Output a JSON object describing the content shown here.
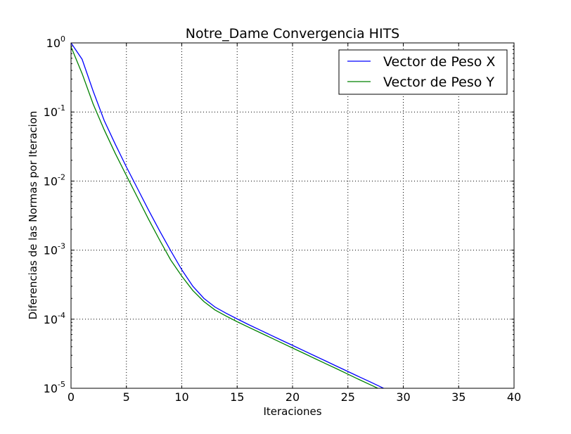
{
  "chart_data": {
    "type": "line",
    "title": "Notre_Dame Convergencia HITS",
    "xlabel": "Iteraciones",
    "ylabel": "Diferencias de las Normas por Iteracion",
    "xlim": [
      0,
      40
    ],
    "ylim": [
      1e-05,
      1
    ],
    "yscale": "log",
    "grid": true,
    "legend_position": "top-right",
    "x_ticks": [
      {
        "value": 0,
        "label": "0"
      },
      {
        "value": 5,
        "label": "5"
      },
      {
        "value": 10,
        "label": "10"
      },
      {
        "value": 15,
        "label": "15"
      },
      {
        "value": 20,
        "label": "20"
      },
      {
        "value": 25,
        "label": "25"
      },
      {
        "value": 30,
        "label": "30"
      },
      {
        "value": 35,
        "label": "35"
      },
      {
        "value": 40,
        "label": "40"
      }
    ],
    "y_ticks": [
      {
        "value": 1,
        "base": "10",
        "exp": "0"
      },
      {
        "value": 0.1,
        "base": "10",
        "exp": "-1"
      },
      {
        "value": 0.01,
        "base": "10",
        "exp": "-2"
      },
      {
        "value": 0.001,
        "base": "10",
        "exp": "-3"
      },
      {
        "value": 0.0001,
        "base": "10",
        "exp": "-4"
      },
      {
        "value": 1e-05,
        "base": "10",
        "exp": "-5"
      }
    ],
    "series": [
      {
        "name": "Vector de Peso X",
        "color": "#0000ff",
        "x": [
          0,
          1,
          2,
          3,
          4,
          5,
          6,
          7,
          8,
          9,
          10,
          11,
          12,
          13,
          14,
          15,
          16,
          17,
          18,
          19,
          20,
          21,
          22,
          23,
          24,
          25,
          26,
          27,
          28,
          29
        ],
        "y": [
          1.0,
          0.58,
          0.2,
          0.075,
          0.034,
          0.016,
          0.0078,
          0.0038,
          0.0019,
          0.00098,
          0.00052,
          0.0003,
          0.0002,
          0.00015,
          0.000122,
          0.000101,
          8.4e-05,
          7.05e-05,
          5.92e-05,
          4.97e-05,
          4.18e-05,
          3.51e-05,
          2.95e-05,
          2.48e-05,
          2.08e-05,
          1.75e-05,
          1.47e-05,
          1.24e-05,
          1.04e-05,
          8.7e-06
        ]
      },
      {
        "name": "Vector de Peso Y",
        "color": "#008000",
        "x": [
          0,
          1,
          2,
          3,
          4,
          5,
          6,
          7,
          8,
          9,
          10,
          11,
          12,
          13,
          14,
          15,
          16,
          17,
          18,
          19,
          20,
          21,
          22,
          23,
          24,
          25,
          26,
          27,
          28
        ],
        "y": [
          0.88,
          0.36,
          0.13,
          0.055,
          0.025,
          0.012,
          0.0058,
          0.0028,
          0.0014,
          0.00072,
          0.00042,
          0.00026,
          0.00018,
          0.000136,
          0.000111,
          9.2e-05,
          7.7e-05,
          6.47e-05,
          5.43e-05,
          4.56e-05,
          3.83e-05,
          3.22e-05,
          2.7e-05,
          2.27e-05,
          1.91e-05,
          1.6e-05,
          1.34e-05,
          1.13e-05,
          9.5e-06
        ]
      }
    ]
  }
}
